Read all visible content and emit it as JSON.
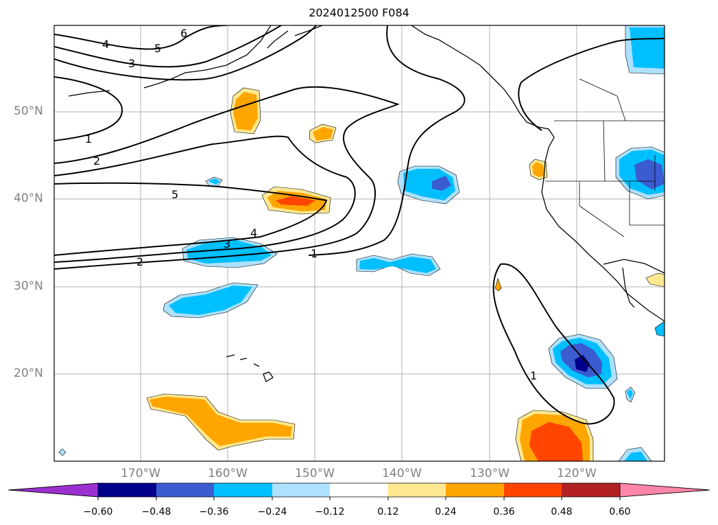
{
  "title": "2024012500 F084",
  "latitude_labels": [
    "50°N",
    "40°N",
    "30°N",
    "20°N"
  ],
  "longitude_labels": [
    "170°W",
    "160°W",
    "150°W",
    "140°W",
    "130°W",
    "120°W"
  ],
  "colorbar": {
    "ticks": [
      "−0.60",
      "−0.48",
      "−0.36",
      "−0.24",
      "−0.12",
      "0.12",
      "0.24",
      "0.36",
      "0.48",
      "0.60"
    ],
    "colors": [
      "#9b30d0",
      "#00008b",
      "#3b5bd1",
      "#00bfff",
      "#aee1ff",
      "#ffffff",
      "#ffe88f",
      "#ffa500",
      "#ff4500",
      "#b22222",
      "#ff86a8"
    ]
  },
  "contour_labels": [
    "6",
    "5",
    "4",
    "3",
    "1",
    "2",
    "5",
    "4",
    "3",
    "2",
    "1",
    "1"
  ]
}
